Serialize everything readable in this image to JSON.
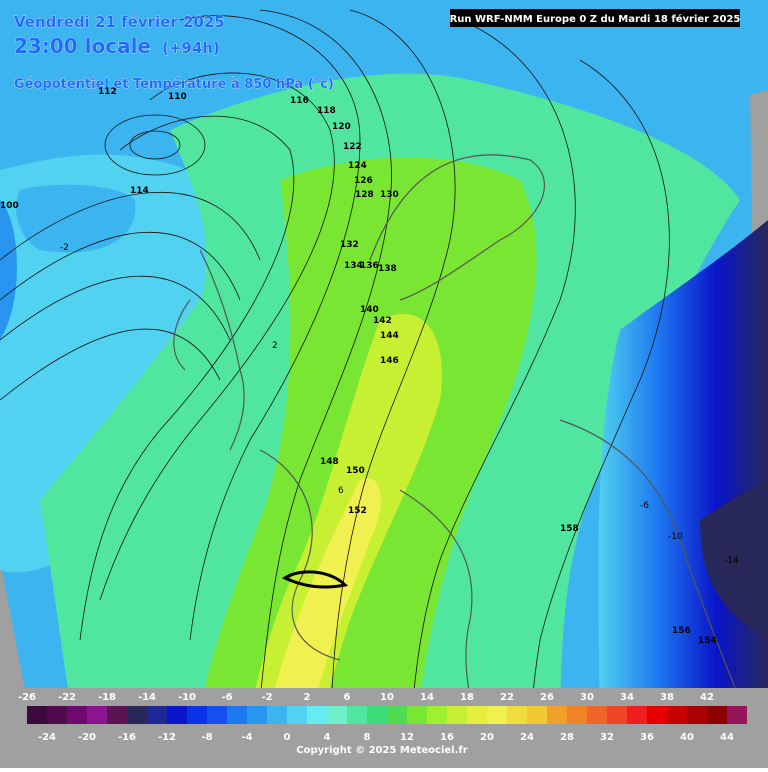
{
  "header": {
    "date": "Vendredi 21 février 2025",
    "time": "23:00 locale",
    "lead": "(+94h)",
    "field": "Géopotentiel et Température à 850 hPa (°c)",
    "run": "Run WRF-NMM Europe 0 Z du Mardi 18 février 2025"
  },
  "legend": {
    "top_labels": [
      "-26",
      "-22",
      "-18",
      "-14",
      "-10",
      "-6",
      "-2",
      "2",
      "6",
      "10",
      "14",
      "18",
      "22",
      "26",
      "30",
      "34",
      "38",
      "42"
    ],
    "bottom_labels": [
      "-24",
      "-20",
      "-16",
      "-12",
      "-8",
      "-4",
      "0",
      "4",
      "8",
      "12",
      "16",
      "20",
      "24",
      "28",
      "32",
      "36",
      "40",
      "44"
    ],
    "colors": [
      "#3c0a3c",
      "#500a50",
      "#6e0a6e",
      "#8c148c",
      "#5a1450",
      "#28285a",
      "#1e2896",
      "#0a14c8",
      "#0a32e6",
      "#1450f0",
      "#1e78f0",
      "#2896f0",
      "#3cb4f0",
      "#50d2f0",
      "#64ecf0",
      "#6ef0c8",
      "#50e6a0",
      "#3cdc78",
      "#50dc50",
      "#78e632",
      "#a0f032",
      "#c8f032",
      "#e6f03c",
      "#f0f050",
      "#f0dc3c",
      "#f0c832",
      "#f0a028",
      "#f08228",
      "#f06428",
      "#f04628",
      "#f01e1e",
      "#e60000",
      "#c80000",
      "#aa0000",
      "#8c0000",
      "#96145a"
    ]
  },
  "map_labels": [
    "110",
    "112",
    "116",
    "118",
    "120",
    "122",
    "124",
    "126",
    "128",
    "130",
    "132",
    "134",
    "136",
    "138",
    "140",
    "142",
    "144",
    "146",
    "148",
    "150",
    "152",
    "154",
    "156",
    "158",
    "114",
    "100",
    "2",
    "-2",
    "6",
    "-6",
    "-10",
    "-14"
  ],
  "copyright": "Copyright © 2025 Meteociel.fr"
}
